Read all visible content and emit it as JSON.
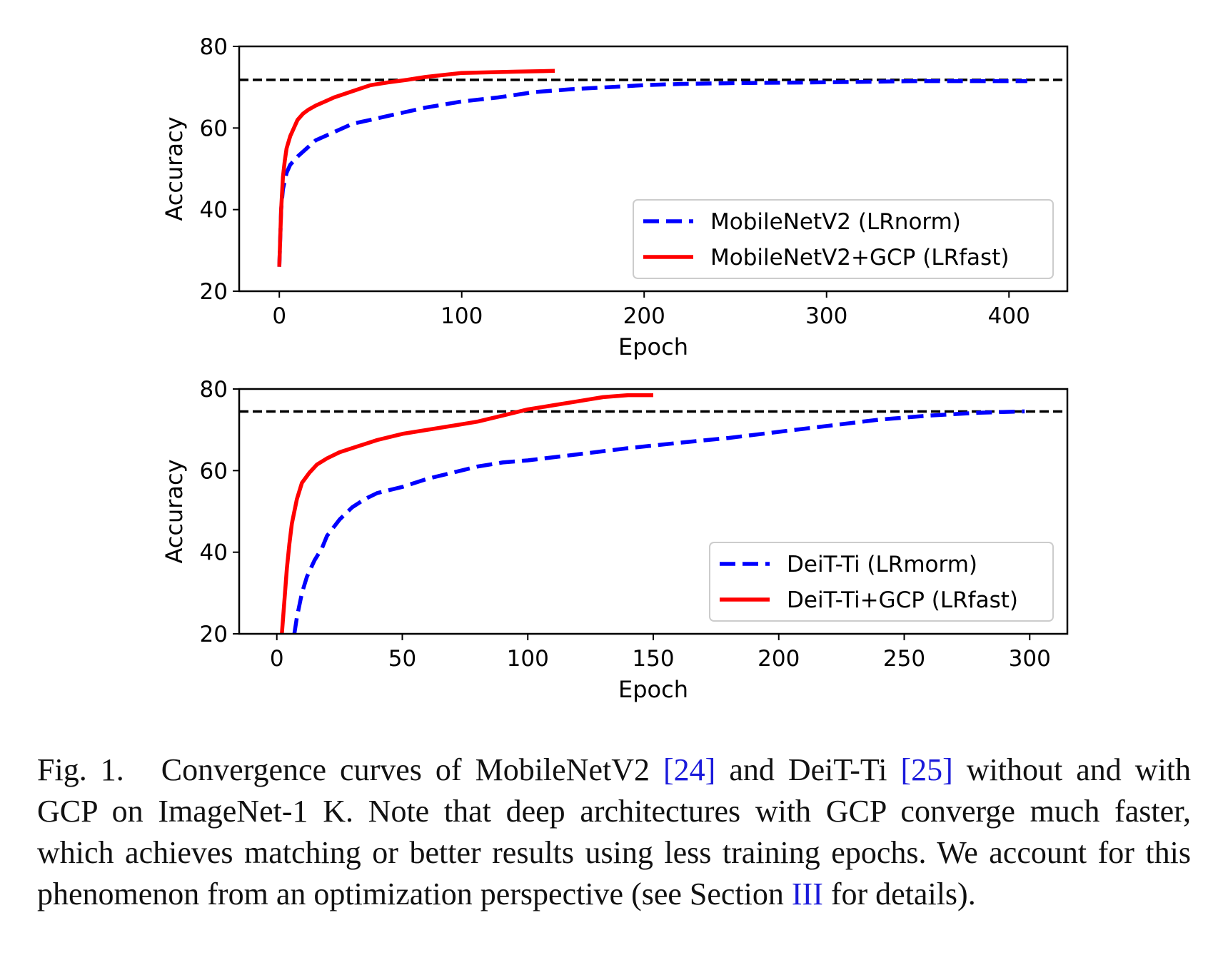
{
  "chart_data": [
    {
      "type": "line",
      "xlabel": "Epoch",
      "ylabel": "Accuracy",
      "xlim": [
        -22,
        432
      ],
      "ylim": [
        20,
        80
      ],
      "xticks": [
        0,
        100,
        200,
        300,
        400
      ],
      "yticks": [
        20,
        40,
        60,
        80
      ],
      "reference_line": {
        "y": 71.8,
        "style": "dashed",
        "color": "#000000"
      },
      "legend": {
        "position": "lower-right"
      },
      "series": [
        {
          "name": "MobileNetV2 (LRnorm)",
          "color": "#0000ff",
          "style": "dashed",
          "x": [
            0,
            1,
            2,
            4,
            6,
            10,
            15,
            20,
            30,
            40,
            50,
            60,
            70,
            80,
            100,
            120,
            140,
            160,
            180,
            200,
            220,
            250,
            300,
            350,
            410
          ],
          "y": [
            26,
            40,
            45,
            49,
            51,
            53,
            55,
            57,
            59,
            61,
            62,
            63,
            64,
            65,
            66.5,
            67.5,
            68.8,
            69.5,
            70,
            70.5,
            70.8,
            71,
            71.2,
            71.5,
            71.5
          ]
        },
        {
          "name": "MobileNetV2+GCP (LRfast)",
          "color": "#ff0000",
          "style": "solid",
          "x": [
            0,
            1,
            2,
            3,
            4,
            6,
            8,
            10,
            13,
            16,
            20,
            25,
            30,
            40,
            50,
            60,
            70,
            80,
            90,
            100,
            110,
            120,
            130,
            140,
            151
          ],
          "y": [
            26,
            40,
            48,
            52,
            55,
            58,
            60,
            62,
            63.5,
            64.5,
            65.5,
            66.5,
            67.5,
            69,
            70.5,
            71.2,
            71.8,
            72.5,
            73,
            73.5,
            73.6,
            73.7,
            73.8,
            73.9,
            74
          ]
        }
      ]
    },
    {
      "type": "line",
      "xlabel": "Epoch",
      "ylabel": "Accuracy",
      "xlim": [
        -15,
        315
      ],
      "ylim": [
        20,
        80
      ],
      "xticks": [
        0,
        50,
        100,
        150,
        200,
        250,
        300
      ],
      "yticks": [
        20,
        40,
        60,
        80
      ],
      "reference_line": {
        "y": 74.5,
        "style": "dashed",
        "color": "#000000"
      },
      "legend": {
        "position": "lower-right"
      },
      "series": [
        {
          "name": "DeiT-Ti (LRmorm)",
          "color": "#0000ff",
          "style": "dashed",
          "x": [
            7,
            8,
            10,
            12,
            15,
            18,
            20,
            25,
            30,
            35,
            40,
            50,
            60,
            70,
            80,
            90,
            100,
            120,
            140,
            160,
            180,
            200,
            220,
            240,
            260,
            280,
            298
          ],
          "y": [
            20,
            24,
            30,
            34,
            38,
            41,
            44,
            48,
            51,
            53,
            54.5,
            56,
            58,
            59.5,
            61,
            62,
            62.5,
            64,
            65.5,
            66.8,
            68,
            69.5,
            71,
            72.5,
            73.5,
            74.2,
            74.5
          ]
        },
        {
          "name": "DeiT-Ti+GCP (LRfast)",
          "color": "#ff0000",
          "style": "solid",
          "x": [
            2,
            3,
            4,
            5,
            6,
            8,
            10,
            13,
            16,
            20,
            25,
            30,
            40,
            50,
            60,
            70,
            80,
            90,
            100,
            110,
            120,
            130,
            140,
            150
          ],
          "y": [
            20,
            28,
            36,
            42,
            47,
            53,
            57,
            59.5,
            61.5,
            63,
            64.5,
            65.5,
            67.5,
            69,
            70,
            71,
            72,
            73.5,
            75,
            76,
            77,
            78,
            78.5,
            78.5
          ]
        }
      ]
    }
  ],
  "caption": {
    "label": "Fig. 1.",
    "t1": "Convergence curves of MobileNetV2 ",
    "ref1": "[24]",
    "t2": " and DeiT-Ti ",
    "ref2": "[25]",
    "t3": " without and with GCP on ImageNet-1 K. Note that deep architectures with GCP converge much faster, which achieves matching or better results using less training epochs. We account for this phenomenon from an optimization perspective (see Section ",
    "ref3": "III",
    "t4": " for details)."
  }
}
